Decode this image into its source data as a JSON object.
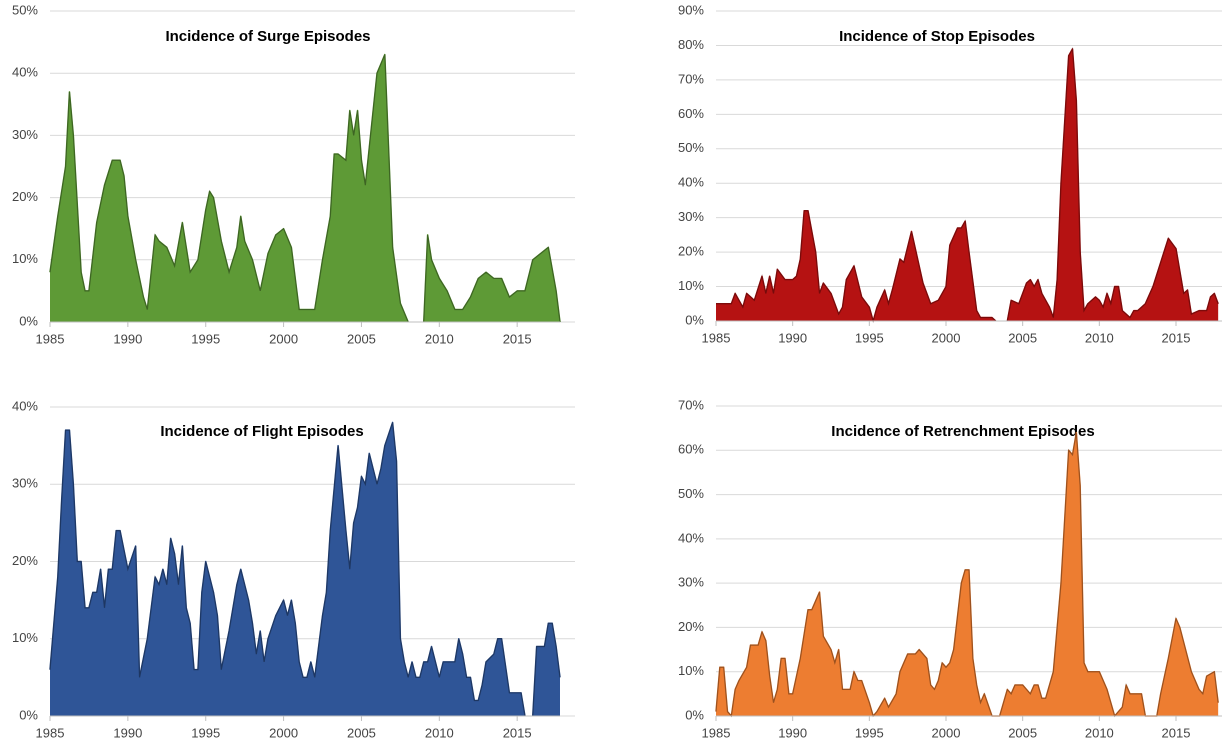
{
  "chart_data": [
    {
      "type": "area",
      "title": "Incidence of Surge Episodes",
      "color": "#5e9a36",
      "x": [
        1985,
        1985.5,
        1986,
        1986.25,
        1986.5,
        1987,
        1987.25,
        1987.5,
        1988,
        1988.5,
        1989,
        1989.5,
        1989.75,
        1990,
        1990.5,
        1991,
        1991.25,
        1991.5,
        1991.75,
        1992,
        1992.5,
        1993,
        1993.5,
        1994,
        1994.5,
        1995,
        1995.25,
        1995.5,
        1996,
        1996.5,
        1997,
        1997.25,
        1997.5,
        1998,
        1998.5,
        1999,
        1999.5,
        2000,
        2000.5,
        2001,
        2001.5,
        2002,
        2002.5,
        2003,
        2003.25,
        2003.5,
        2004,
        2004.25,
        2004.5,
        2004.75,
        2005,
        2005.25,
        2005.5,
        2006,
        2006.5,
        2007,
        2007.5,
        2008,
        2008.5,
        2009,
        2009.25,
        2009.5,
        2010,
        2010.5,
        2011,
        2011.5,
        2012,
        2012.5,
        2013,
        2013.5,
        2014,
        2014.5,
        2015,
        2015.5,
        2016,
        2016.5,
        2017,
        2017.5,
        2017.75
      ],
      "values": [
        8,
        17,
        25,
        37,
        30,
        8,
        5,
        5,
        16,
        22,
        26,
        26,
        23.5,
        17,
        10,
        4,
        2,
        8,
        14,
        13,
        12,
        9,
        16,
        8,
        10,
        18,
        21,
        20,
        13,
        8,
        12,
        17,
        13,
        10,
        5,
        11,
        14,
        15,
        12,
        2,
        2,
        2,
        10,
        17,
        27,
        27,
        26,
        34,
        30,
        34,
        26,
        22,
        28,
        40,
        43,
        12,
        3,
        0,
        null,
        0,
        14,
        10,
        7,
        5,
        2,
        2,
        4,
        7,
        8,
        7,
        7,
        4,
        5,
        5,
        10,
        11,
        12,
        5,
        0
      ],
      "xlim": [
        1985,
        2017.75
      ],
      "xticks": [
        1985,
        1990,
        1995,
        2000,
        2005,
        2010,
        2015
      ],
      "ylim": [
        0,
        50
      ],
      "yticks": [
        {
          "value": 0,
          "label": "0%"
        },
        {
          "value": 10,
          "label": "10%"
        },
        {
          "value": 20,
          "label": "20%"
        },
        {
          "value": 30,
          "label": "30%"
        },
        {
          "value": 40,
          "label": "40%"
        },
        {
          "value": 50,
          "label": "50%"
        }
      ],
      "grid": true
    },
    {
      "type": "area",
      "title": "Incidence of Stop Episodes",
      "color": "#b51212",
      "x": [
        1985,
        1986,
        1986.25,
        1986.75,
        1987,
        1987.5,
        1988,
        1988.25,
        1988.5,
        1988.75,
        1989,
        1989.5,
        1990,
        1990.25,
        1990.5,
        1990.75,
        1991,
        1991.5,
        1991.75,
        1992,
        1992.5,
        1993,
        1993.25,
        1993.5,
        1994,
        1994.5,
        1995,
        1995.25,
        1995.5,
        1996,
        1996.25,
        1996.5,
        1997,
        1997.25,
        1997.75,
        1998,
        1998.5,
        1999,
        1999.5,
        2000,
        2000.25,
        2000.75,
        2001,
        2001.25,
        2001.5,
        2002,
        2002.25,
        2003,
        2003.25,
        2003.5,
        2004,
        2004.25,
        2004.75,
        2005.25,
        2005.5,
        2005.75,
        2006,
        2006.25,
        2006.75,
        2007,
        2007.25,
        2007.5,
        2008,
        2008.25,
        2008.5,
        2008.75,
        2009,
        2009.25,
        2009.75,
        2010,
        2010.25,
        2010.5,
        2010.75,
        2011,
        2011.25,
        2011.5,
        2012,
        2012.25,
        2012.5,
        2013,
        2013.5,
        2014,
        2014.5,
        2015,
        2015.5,
        2015.75,
        2016,
        2016.5,
        2017,
        2017.25,
        2017.5,
        2017.75
      ],
      "values": [
        5,
        5,
        8,
        4,
        8,
        6,
        13,
        8,
        13,
        8,
        15,
        12,
        12,
        13,
        18,
        32,
        32,
        20,
        8,
        11,
        8,
        2,
        4,
        12,
        16,
        7,
        4,
        0,
        4,
        9,
        5,
        9,
        18,
        17,
        26,
        21,
        11,
        5,
        6,
        10,
        22,
        27,
        27,
        29,
        20,
        3,
        1,
        1,
        0,
        null,
        0,
        6,
        5,
        11,
        12,
        10,
        12,
        8,
        4,
        1,
        12,
        40,
        77,
        79,
        64,
        20,
        3,
        5,
        7,
        6,
        4,
        8,
        5,
        10,
        10,
        3,
        1,
        3,
        3,
        5,
        10,
        17,
        24,
        21,
        8,
        9,
        2,
        3,
        3,
        7,
        8,
        5
      ],
      "xlim": [
        1985,
        2018
      ],
      "xticks": [
        1985,
        1990,
        1995,
        2000,
        2005,
        2010,
        2015
      ],
      "ylim": [
        0,
        90
      ],
      "yticks": [
        {
          "value": 0,
          "label": "0%"
        },
        {
          "value": 10,
          "label": "10%"
        },
        {
          "value": 20,
          "label": "20%"
        },
        {
          "value": 30,
          "label": "30%"
        },
        {
          "value": 40,
          "label": "40%"
        },
        {
          "value": 50,
          "label": "50%"
        },
        {
          "value": 60,
          "label": "60%"
        },
        {
          "value": 70,
          "label": "70%"
        },
        {
          "value": 80,
          "label": "80%"
        },
        {
          "value": 90,
          "label": "90%"
        }
      ],
      "grid": true
    },
    {
      "type": "area",
      "title": "Incidence of Flight Episodes",
      "color": "#2f5597",
      "x": [
        1985,
        1985.5,
        1985.75,
        1986,
        1986.25,
        1986.5,
        1986.75,
        1987,
        1987.25,
        1987.5,
        1987.75,
        1988,
        1988.25,
        1988.5,
        1988.75,
        1989,
        1989.25,
        1989.5,
        1990,
        1990.5,
        1990.75,
        1991.25,
        1991.75,
        1992,
        1992.25,
        1992.5,
        1992.75,
        1993,
        1993.25,
        1993.5,
        1993.75,
        1994,
        1994.25,
        1994.5,
        1994.75,
        1995,
        1995.5,
        1995.75,
        1996,
        1996.5,
        1997,
        1997.25,
        1997.75,
        1998,
        1998.25,
        1998.5,
        1998.75,
        1999,
        1999.5,
        2000,
        2000.25,
        2000.5,
        2000.75,
        2001,
        2001.25,
        2001.5,
        2001.75,
        2002,
        2002.5,
        2002.75,
        2003,
        2003.5,
        2004,
        2004.25,
        2004.5,
        2004.75,
        2005,
        2005.25,
        2005.5,
        2005.75,
        2006,
        2006.25,
        2006.5,
        2007,
        2007.25,
        2007.5,
        2007.75,
        2008,
        2008.25,
        2008.5,
        2008.75,
        2009,
        2009.25,
        2009.5,
        2010,
        2010.25,
        2011,
        2011.25,
        2011.5,
        2011.75,
        2012,
        2012.25,
        2012.5,
        2012.75,
        2013,
        2013.5,
        2013.75,
        2014,
        2014.5,
        2015,
        2015.25,
        2015.5,
        2015.75,
        2016,
        2016.25,
        2016.75,
        2017,
        2017.25,
        2017.5,
        2017.75
      ],
      "values": [
        6,
        18,
        28,
        37,
        37,
        30,
        20,
        20,
        14,
        14,
        16,
        16,
        19,
        14,
        19,
        19,
        24,
        24,
        19,
        22,
        5,
        10,
        18,
        17,
        19,
        17,
        23,
        21,
        17,
        22,
        14,
        12,
        6,
        6,
        16,
        20,
        16,
        13,
        6,
        11,
        17,
        19,
        15,
        12,
        8,
        11,
        7,
        10,
        13,
        15,
        13,
        15,
        12,
        7,
        5,
        5,
        7,
        5,
        13,
        16,
        24,
        35,
        24,
        19,
        25,
        27,
        31,
        30,
        34,
        32,
        30,
        32,
        35,
        38,
        33,
        10,
        7,
        5,
        7,
        5,
        5,
        7,
        7,
        9,
        5,
        7,
        7,
        10,
        8,
        5,
        5,
        2,
        2,
        4,
        7,
        8,
        10,
        10,
        3,
        3,
        3,
        0,
        null,
        0,
        9,
        9,
        12,
        12,
        9,
        5
      ],
      "xlim": [
        1985,
        2017.75
      ],
      "xticks": [
        1985,
        1990,
        1995,
        2000,
        2005,
        2010,
        2015
      ],
      "ylim": [
        0,
        40
      ],
      "yticks": [
        {
          "value": 0,
          "label": "0%"
        },
        {
          "value": 10,
          "label": "10%"
        },
        {
          "value": 20,
          "label": "20%"
        },
        {
          "value": 30,
          "label": "30%"
        },
        {
          "value": 40,
          "label": "40%"
        }
      ],
      "grid": true
    },
    {
      "type": "area",
      "title": "Incidence of Retrenchment Episodes",
      "color": "#ed7d31",
      "x": [
        1985,
        1985.25,
        1985.5,
        1985.75,
        1986,
        1986.25,
        1986.5,
        1987,
        1987.25,
        1987.5,
        1987.75,
        1988,
        1988.25,
        1988.5,
        1988.75,
        1989,
        1989.25,
        1989.5,
        1989.75,
        1990,
        1990.5,
        1991,
        1991.25,
        1991.75,
        1992,
        1992.5,
        1992.75,
        1993,
        1993.25,
        1993.75,
        1994,
        1994.25,
        1994.5,
        1995,
        1995.25,
        1995.5,
        1996,
        1996.25,
        1996.75,
        1997,
        1997.5,
        1998,
        1998.25,
        1998.75,
        1999,
        1999.25,
        1999.5,
        1999.75,
        2000,
        2000.25,
        2000.5,
        2001,
        2001.25,
        2001.5,
        2001.75,
        2002,
        2002.25,
        2002.5,
        2003,
        2003.5,
        2004,
        2004.25,
        2004.5,
        2005,
        2005.5,
        2005.75,
        2006,
        2006.25,
        2006.5,
        2007,
        2007.5,
        2008,
        2008.25,
        2008.5,
        2008.75,
        2009,
        2009.25,
        2009.75,
        2010,
        2010.5,
        2011,
        2011.5,
        2011.75,
        2012,
        2012.5,
        2012.75,
        2013,
        2013.75,
        2014,
        2014.5,
        2015,
        2015.25,
        2016,
        2016.5,
        2016.75,
        2017,
        2017.5,
        2017.75
      ],
      "values": [
        1,
        11,
        11,
        1,
        0,
        6,
        8,
        11,
        16,
        16,
        16,
        19,
        17,
        9,
        3,
        6,
        13,
        13,
        5,
        5,
        13,
        24,
        24,
        28,
        18,
        15,
        12,
        15,
        6,
        6,
        10,
        8,
        8,
        3,
        0,
        1,
        4,
        2,
        5,
        10,
        14,
        14,
        15,
        13,
        7,
        6,
        8,
        12,
        11,
        12,
        15,
        30,
        33,
        33,
        13,
        7,
        3,
        5,
        0,
        0,
        6,
        5,
        7,
        7,
        5,
        7,
        7,
        4,
        4,
        10,
        30,
        60,
        59,
        64,
        52,
        12,
        10,
        10,
        10,
        6,
        0,
        2,
        7,
        5,
        5,
        5,
        0,
        0,
        5,
        13,
        22,
        20,
        10,
        6,
        5,
        9,
        10,
        3
      ],
      "xlim": [
        1985,
        2018
      ],
      "xticks": [
        1985,
        1990,
        1995,
        2000,
        2005,
        2010,
        2015
      ],
      "ylim": [
        0,
        70
      ],
      "yticks": [
        {
          "value": 0,
          "label": "0%"
        },
        {
          "value": 10,
          "label": "10%"
        },
        {
          "value": 20,
          "label": "20%"
        },
        {
          "value": 30,
          "label": "30%"
        },
        {
          "value": 40,
          "label": "40%"
        },
        {
          "value": 50,
          "label": "50%"
        },
        {
          "value": 60,
          "label": "60%"
        },
        {
          "value": 70,
          "label": "70%"
        }
      ],
      "grid": true
    }
  ]
}
